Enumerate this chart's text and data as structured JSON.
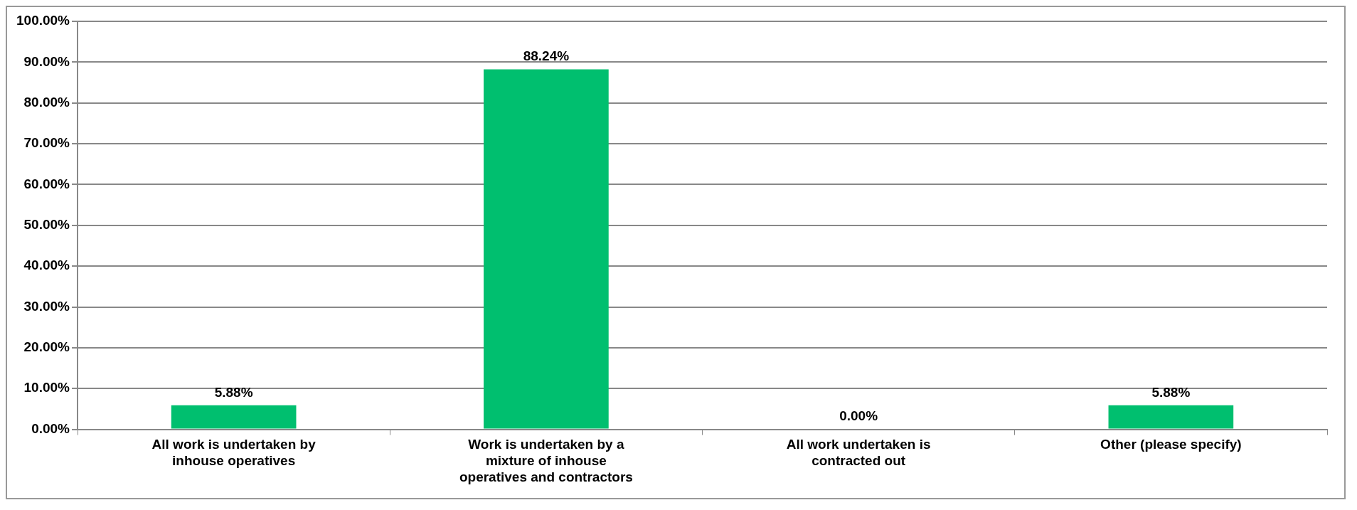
{
  "chart_data": {
    "type": "bar",
    "categories": [
      "All work is undertaken by inhouse operatives",
      "Work is undertaken by a mixture of inhouse operatives and contractors",
      "All work undertaken is contracted out",
      "Other (please specify)"
    ],
    "values": [
      5.88,
      88.24,
      0,
      5.88
    ],
    "value_labels": [
      "5.88%",
      "88.24%",
      "0.00%",
      "5.88%"
    ],
    "color": "#00bf6f",
    "ylim": [
      0,
      100
    ],
    "yticks": [
      {
        "value": 0,
        "label": "0.00%"
      },
      {
        "value": 10,
        "label": "10.00%"
      },
      {
        "value": 20,
        "label": "20.00%"
      },
      {
        "value": 30,
        "label": "30.00%"
      },
      {
        "value": 40,
        "label": "40.00%"
      },
      {
        "value": 50,
        "label": "50.00%"
      },
      {
        "value": 60,
        "label": "60.00%"
      },
      {
        "value": 70,
        "label": "70.00%"
      },
      {
        "value": 80,
        "label": "80.00%"
      },
      {
        "value": 90,
        "label": "90.00%"
      },
      {
        "value": 100,
        "label": "100.00%"
      }
    ],
    "grid": "y",
    "legend": false
  }
}
